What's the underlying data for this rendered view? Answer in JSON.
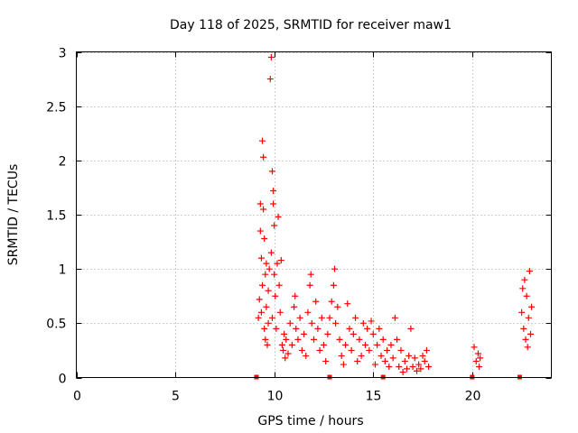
{
  "chart_data": {
    "type": "scatter",
    "title": "Day 118 of 2025, SRMTID for receiver maw1",
    "xlabel": "GPS time / hours",
    "ylabel": "SRMTID / TECUs",
    "xlim": [
      0,
      24
    ],
    "ylim": [
      0,
      3
    ],
    "xticks": [
      0,
      5,
      10,
      15,
      20
    ],
    "xtick_labels": [
      "0",
      "5",
      "10",
      "15",
      "20"
    ],
    "yticks": [
      0,
      0.5,
      1,
      1.5,
      2,
      2.5,
      3
    ],
    "ytick_labels": [
      "0",
      "0.5",
      "1",
      "1.5",
      "2",
      "2.5",
      "3"
    ],
    "grid": true,
    "marker": "+",
    "color": "#ff0000",
    "gap_markers_x": [
      9.1,
      12.8,
      15.5,
      20.0,
      22.4
    ],
    "series": [
      {
        "name": "SRMTID",
        "points": [
          [
            9.2,
            0.55
          ],
          [
            9.25,
            0.72
          ],
          [
            9.3,
            1.6
          ],
          [
            9.3,
            1.35
          ],
          [
            9.35,
            1.1
          ],
          [
            9.35,
            0.6
          ],
          [
            9.4,
            0.85
          ],
          [
            9.4,
            2.18
          ],
          [
            9.45,
            2.03
          ],
          [
            9.45,
            1.55
          ],
          [
            9.5,
            1.28
          ],
          [
            9.5,
            0.45
          ],
          [
            9.55,
            0.95
          ],
          [
            9.55,
            0.35
          ],
          [
            9.6,
            1.05
          ],
          [
            9.6,
            0.65
          ],
          [
            9.65,
            0.3
          ],
          [
            9.7,
            0.8
          ],
          [
            9.7,
            0.5
          ],
          [
            9.75,
            1.0
          ],
          [
            9.8,
            2.75
          ],
          [
            9.85,
            2.95
          ],
          [
            9.85,
            1.15
          ],
          [
            9.9,
            1.9
          ],
          [
            9.9,
            0.55
          ],
          [
            9.95,
            1.72
          ],
          [
            9.95,
            1.6
          ],
          [
            10.0,
            1.4
          ],
          [
            10.0,
            0.95
          ],
          [
            10.05,
            0.75
          ],
          [
            10.1,
            0.45
          ],
          [
            10.15,
            1.05
          ],
          [
            10.2,
            1.48
          ],
          [
            10.25,
            0.85
          ],
          [
            10.3,
            0.6
          ],
          [
            10.35,
            1.08
          ],
          [
            10.4,
            0.3
          ],
          [
            10.45,
            0.25
          ],
          [
            10.5,
            0.4
          ],
          [
            10.55,
            0.18
          ],
          [
            10.6,
            0.35
          ],
          [
            10.7,
            0.22
          ],
          [
            10.8,
            0.5
          ],
          [
            10.9,
            0.3
          ],
          [
            11.0,
            0.65
          ],
          [
            11.05,
            0.75
          ],
          [
            11.1,
            0.45
          ],
          [
            11.2,
            0.35
          ],
          [
            11.3,
            0.55
          ],
          [
            11.4,
            0.25
          ],
          [
            11.5,
            0.4
          ],
          [
            11.6,
            0.2
          ],
          [
            11.7,
            0.6
          ],
          [
            11.8,
            0.85
          ],
          [
            11.85,
            0.95
          ],
          [
            11.9,
            0.5
          ],
          [
            12.0,
            0.35
          ],
          [
            12.1,
            0.7
          ],
          [
            12.2,
            0.45
          ],
          [
            12.3,
            0.25
          ],
          [
            12.4,
            0.55
          ],
          [
            12.5,
            0.3
          ],
          [
            12.6,
            0.15
          ],
          [
            12.7,
            0.4
          ],
          [
            12.8,
            0.55
          ],
          [
            12.9,
            0.7
          ],
          [
            13.0,
            0.85
          ],
          [
            13.05,
            1.0
          ],
          [
            13.1,
            0.5
          ],
          [
            13.2,
            0.65
          ],
          [
            13.3,
            0.35
          ],
          [
            13.4,
            0.2
          ],
          [
            13.5,
            0.12
          ],
          [
            13.6,
            0.3
          ],
          [
            13.7,
            0.68
          ],
          [
            13.8,
            0.45
          ],
          [
            13.9,
            0.25
          ],
          [
            14.0,
            0.4
          ],
          [
            14.1,
            0.55
          ],
          [
            14.2,
            0.15
          ],
          [
            14.3,
            0.35
          ],
          [
            14.4,
            0.2
          ],
          [
            14.5,
            0.5
          ],
          [
            14.6,
            0.3
          ],
          [
            14.7,
            0.45
          ],
          [
            14.8,
            0.25
          ],
          [
            14.9,
            0.52
          ],
          [
            15.0,
            0.4
          ],
          [
            15.1,
            0.12
          ],
          [
            15.2,
            0.3
          ],
          [
            15.3,
            0.45
          ],
          [
            15.4,
            0.2
          ],
          [
            15.5,
            0.35
          ],
          [
            15.6,
            0.15
          ],
          [
            15.7,
            0.25
          ],
          [
            15.8,
            0.1
          ],
          [
            15.9,
            0.3
          ],
          [
            16.0,
            0.18
          ],
          [
            16.1,
            0.55
          ],
          [
            16.2,
            0.35
          ],
          [
            16.3,
            0.1
          ],
          [
            16.4,
            0.25
          ],
          [
            16.5,
            0.05
          ],
          [
            16.6,
            0.15
          ],
          [
            16.7,
            0.08
          ],
          [
            16.8,
            0.2
          ],
          [
            16.9,
            0.45
          ],
          [
            17.0,
            0.1
          ],
          [
            17.1,
            0.18
          ],
          [
            17.2,
            0.06
          ],
          [
            17.3,
            0.12
          ],
          [
            17.4,
            0.08
          ],
          [
            17.5,
            0.2
          ],
          [
            17.6,
            0.15
          ],
          [
            17.7,
            0.25
          ],
          [
            17.8,
            0.1
          ],
          [
            20.1,
            0.28
          ],
          [
            20.2,
            0.15
          ],
          [
            20.3,
            0.22
          ],
          [
            20.35,
            0.1
          ],
          [
            20.4,
            0.18
          ],
          [
            22.5,
            0.6
          ],
          [
            22.55,
            0.82
          ],
          [
            22.6,
            0.45
          ],
          [
            22.65,
            0.9
          ],
          [
            22.7,
            0.35
          ],
          [
            22.75,
            0.75
          ],
          [
            22.8,
            0.28
          ],
          [
            22.85,
            0.55
          ],
          [
            22.9,
            0.98
          ],
          [
            22.95,
            0.4
          ],
          [
            23.0,
            0.65
          ]
        ]
      }
    ]
  }
}
